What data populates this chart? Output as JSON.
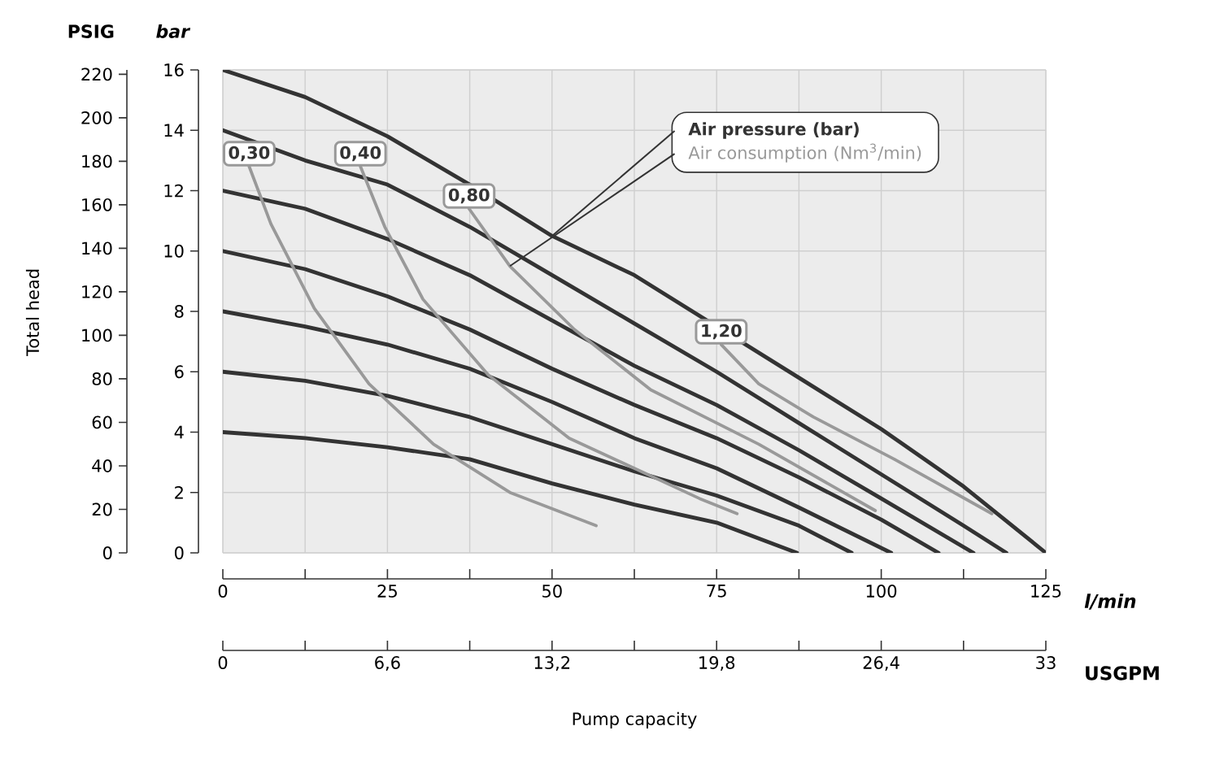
{
  "chart_data": {
    "type": "line",
    "xlabel": "l/min",
    "x2label": "USGPM",
    "ylabel": "bar",
    "y2label": "PSIG",
    "xlim": [
      0,
      125
    ],
    "xticks": [
      0,
      {
        "value": 12.5,
        "label": null
      },
      25,
      {
        "value": 37.5,
        "label": null
      },
      50,
      {
        "value": 62.5,
        "label": null
      },
      75,
      {
        "value": 87.5,
        "label": null
      },
      100,
      {
        "value": 112.5,
        "label": null
      },
      125
    ],
    "x2lim": [
      0,
      33
    ],
    "x2ticks": [
      0,
      {
        "value": 3.3,
        "label": null
      },
      {
        "value": 6.6,
        "label": "6,6"
      },
      {
        "value": 9.9,
        "label": null
      },
      {
        "value": 13.2,
        "label": "13,2"
      },
      {
        "value": 16.5,
        "label": null
      },
      {
        "value": 19.8,
        "label": "19,8"
      },
      {
        "value": 23.1,
        "label": null
      },
      {
        "value": 26.4,
        "label": "26,4"
      },
      {
        "value": 29.7,
        "label": null
      },
      33
    ],
    "ylim": [
      0,
      16
    ],
    "yticks": [
      0,
      2,
      4,
      6,
      8,
      10,
      12,
      14,
      16
    ],
    "y2lim": [
      0,
      222
    ],
    "y2ticks": [
      0,
      20,
      40,
      60,
      80,
      100,
      120,
      140,
      160,
      180,
      200,
      220
    ],
    "grid": true,
    "series": [
      {
        "color": "#333333",
        "x": [
          0,
          12.5,
          25,
          37.5,
          50,
          62.5,
          87.5,
          100,
          112.5,
          125
        ],
        "values": [
          16,
          15.1,
          13.8,
          12.2,
          10.5,
          9.2,
          5.8,
          4.1,
          2.2,
          0
        ]
      },
      {
        "color": "#333333",
        "x": [
          0,
          12.5,
          25,
          37.5,
          50,
          62.5,
          75,
          87.5,
          100,
          112.5,
          119
        ],
        "values": [
          14,
          13,
          12.2,
          10.8,
          9.2,
          7.6,
          6,
          4.3,
          2.6,
          0.9,
          0
        ]
      },
      {
        "color": "#333333",
        "x": [
          0,
          12.5,
          25,
          37.5,
          50,
          62.5,
          75,
          87.5,
          100,
          114
        ],
        "values": [
          12,
          11.4,
          10.4,
          9.2,
          7.7,
          6.2,
          4.9,
          3.4,
          1.8,
          0
        ]
      },
      {
        "color": "#333333",
        "x": [
          0,
          12.5,
          25,
          37.5,
          50,
          62.5,
          75,
          87.5,
          100,
          108.7
        ],
        "values": [
          10,
          9.4,
          8.5,
          7.4,
          6.1,
          4.9,
          3.8,
          2.5,
          1.1,
          0
        ]
      },
      {
        "color": "#333333",
        "x": [
          0,
          12.5,
          25,
          37.5,
          50,
          62.5,
          75,
          87.5,
          101.5
        ],
        "values": [
          8,
          7.5,
          6.9,
          6.1,
          5,
          3.8,
          2.8,
          1.5,
          0
        ]
      },
      {
        "color": "#333333",
        "x": [
          0,
          12.5,
          25,
          37.5,
          50,
          62.5,
          75,
          87.5,
          95.5
        ],
        "values": [
          6,
          5.7,
          5.2,
          4.5,
          3.6,
          2.7,
          1.9,
          0.9,
          0
        ]
      },
      {
        "color": "#333333",
        "x": [
          0,
          12.5,
          25,
          37.5,
          50,
          62.5,
          75,
          87.2
        ],
        "values": [
          4,
          3.8,
          3.5,
          3.1,
          2.3,
          1.6,
          1,
          0
        ]
      },
      {
        "color": "#999999",
        "x": [
          4,
          7.3,
          13.9,
          22.2,
          32,
          43.6,
          56.7
        ],
        "values": [
          12.8,
          10.9,
          8.1,
          5.6,
          3.6,
          2,
          0.9
        ]
      },
      {
        "color": "#999999",
        "x": [
          20.9,
          24.6,
          30.4,
          40.3,
          52.6,
          72.4,
          78.1
        ],
        "values": [
          12.8,
          10.8,
          8.4,
          5.9,
          3.8,
          1.8,
          1.3
        ]
      },
      {
        "color": "#999999",
        "x": [
          37.4,
          43.6,
          53.4,
          65,
          81.4,
          99.1
        ],
        "values": [
          11.4,
          9.5,
          7.4,
          5.4,
          3.6,
          1.4
        ]
      },
      {
        "color": "#999999",
        "x": [
          75.7,
          81.4,
          89.7,
          102,
          116.8
        ],
        "values": [
          6.9,
          5.6,
          4.5,
          3.1,
          1.3
        ]
      }
    ],
    "annotations": [
      "Total head",
      "Pump capacity",
      {
        "text": "0,30",
        "x": 4,
        "y": 12.8
      },
      {
        "text": "0,40",
        "x": 20.9,
        "y": 12.8
      },
      {
        "text": "0,80",
        "x": 37.4,
        "y": 11.4
      },
      {
        "text": "1,20",
        "x": 75.7,
        "y": 6.9
      },
      {
        "text": "Air pressure (bar)",
        "x": 50,
        "y": 10.5
      },
      {
        "text": "Air consumption (Nm$^{3}$/min)",
        "x": 43.6,
        "y": 9.5
      }
    ]
  }
}
